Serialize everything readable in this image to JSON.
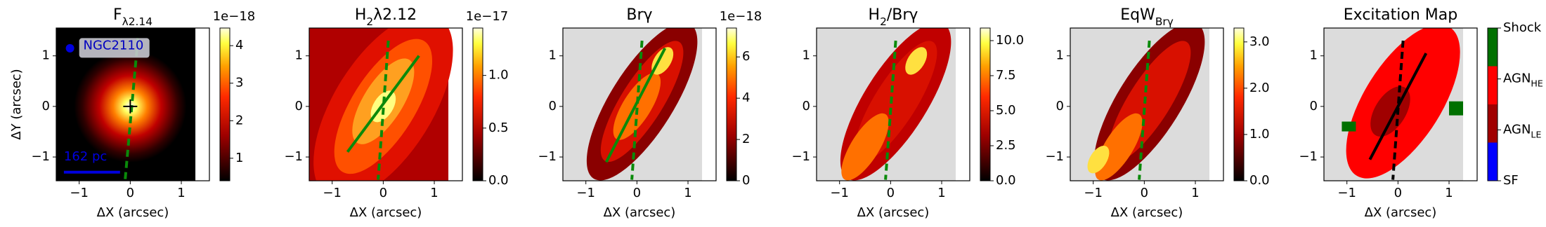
{
  "chart_data": [
    {
      "type": "heatmap",
      "title": [
        "F",
        "λ2.14"
      ],
      "xlabel": "ΔX (arcsec)",
      "ylabel": "ΔY (arcsec)",
      "xlim": [
        -1.45,
        1.55
      ],
      "ylim": [
        -1.47,
        1.55
      ],
      "xticks": [
        {
          "value": -1,
          "label": "−1"
        },
        0,
        1
      ],
      "yticks": [
        {
          "value": -1,
          "label": "−1"
        },
        0,
        1
      ],
      "colorbar": {
        "lim": [
          0.4,
          4.47
        ],
        "ticks": [
          1,
          2,
          3,
          4
        ],
        "offset": "1e−18"
      },
      "annotations": [
        "NGC2110",
        "162 pc"
      ]
    },
    {
      "type": "heatmap",
      "title": [
        "H",
        "2",
        "λ2.12"
      ],
      "xlabel": "ΔX (arcsec)",
      "xlim": [
        -1.45,
        1.55
      ],
      "ylim": [
        -1.47,
        1.55
      ],
      "xticks": [
        {
          "value": -1,
          "label": "−1"
        },
        0,
        1
      ],
      "yticks": [
        {
          "value": -1,
          "label": "−1"
        },
        0,
        1
      ],
      "colorbar": {
        "lim": [
          0,
          1.45
        ],
        "ticks": [
          {
            "value": 0,
            "label": "0.0"
          },
          {
            "value": 0.5,
            "label": "0.5"
          },
          {
            "value": 1,
            "label": "1.0"
          }
        ],
        "offset": "1e−17"
      }
    },
    {
      "type": "heatmap",
      "title": [
        "Brγ"
      ],
      "xlabel": "ΔX (arcsec)",
      "xlim": [
        -1.45,
        1.55
      ],
      "ylim": [
        -1.47,
        1.55
      ],
      "xticks": [
        {
          "value": -1,
          "label": "−1"
        },
        0,
        1
      ],
      "yticks": [
        {
          "value": -1,
          "label": "−1"
        },
        0,
        1
      ],
      "colorbar": {
        "lim": [
          0,
          7.4
        ],
        "ticks": [
          0,
          2,
          4,
          6
        ],
        "offset": "1e−18"
      }
    },
    {
      "type": "heatmap",
      "title": [
        "H",
        "2",
        "/Brγ"
      ],
      "xlabel": "ΔX (arcsec)",
      "xlim": [
        -1.45,
        1.55
      ],
      "ylim": [
        -1.47,
        1.55
      ],
      "xticks": [
        {
          "value": -1,
          "label": "−1"
        },
        0,
        1
      ],
      "yticks": [
        {
          "value": -1,
          "label": "−1"
        },
        0,
        1
      ],
      "colorbar": {
        "lim": [
          0,
          10.9
        ],
        "ticks": [
          {
            "value": 0,
            "label": "0.0"
          },
          2.5,
          {
            "value": 5,
            "label": "5.0"
          },
          7.5,
          {
            "value": 10,
            "label": "10.0"
          }
        ]
      }
    },
    {
      "type": "heatmap",
      "title": [
        "EqW",
        "Brγ"
      ],
      "xlabel": "ΔX (arcsec)",
      "xlim": [
        -1.45,
        1.55
      ],
      "ylim": [
        -1.47,
        1.55
      ],
      "xticks": [
        {
          "value": -1,
          "label": "−1"
        },
        0,
        1
      ],
      "yticks": [
        {
          "value": -1,
          "label": "−1"
        },
        0,
        1
      ],
      "colorbar": {
        "lim": [
          0,
          3.3
        ],
        "ticks": [
          {
            "value": 0,
            "label": "0.0"
          },
          {
            "value": 1,
            "label": "1.0"
          },
          {
            "value": 2,
            "label": "2.0"
          },
          {
            "value": 3,
            "label": "3.0"
          }
        ]
      }
    },
    {
      "type": "heatmap",
      "title": [
        "Excitation Map"
      ],
      "xlabel": "ΔX (arcsec)",
      "xlim": [
        -1.45,
        1.55
      ],
      "ylim": [
        -1.47,
        1.55
      ],
      "xticks": [
        {
          "value": -1,
          "label": "−1"
        },
        0,
        1
      ],
      "yticks": [
        {
          "value": -1,
          "label": "−1"
        },
        0,
        1
      ],
      "colorbar": {
        "lim": [
          0,
          3
        ],
        "colors": [
          "#0000ff",
          "#a00000",
          "#ff0000",
          "#007000"
        ],
        "ticks": [
          {
            "value": 3,
            "label": [
              "Shock"
            ]
          },
          {
            "value": 2,
            "label": [
              "AGN",
              "HE"
            ]
          },
          {
            "value": 1,
            "label": [
              "AGN",
              "LE"
            ]
          },
          {
            "value": 0,
            "label": [
              "SF"
            ]
          }
        ]
      }
    }
  ]
}
